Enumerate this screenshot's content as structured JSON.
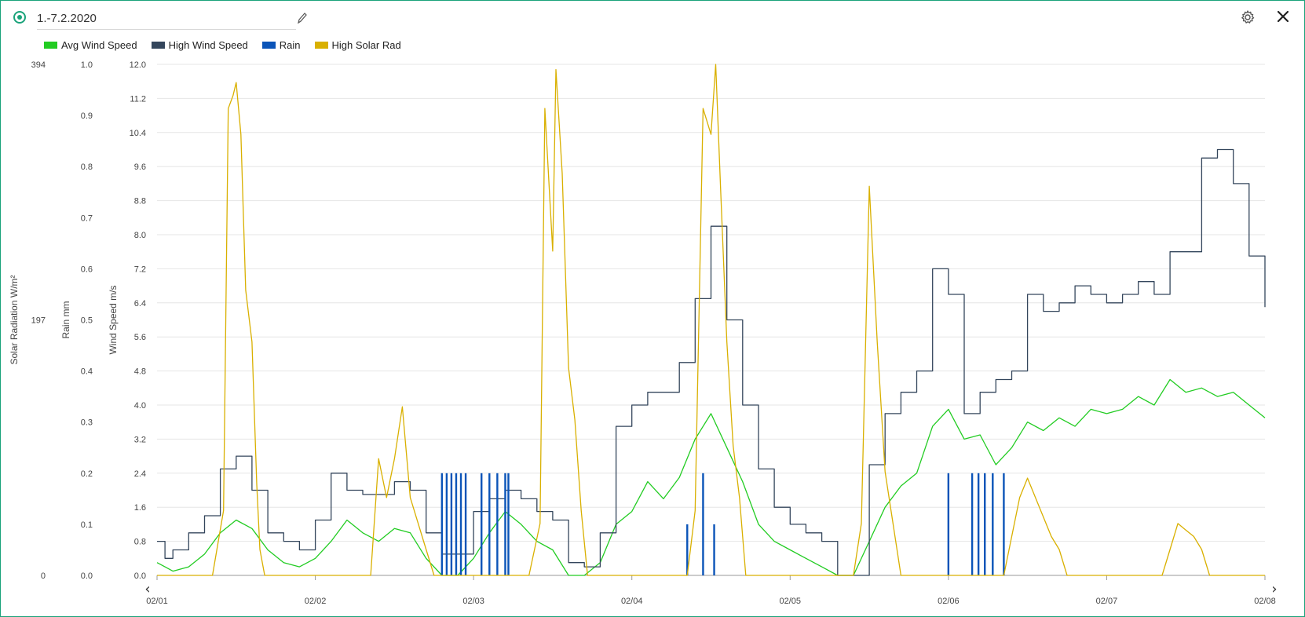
{
  "header": {
    "title_value": "1.-7.2.2020",
    "edit_icon": "pencil-icon",
    "settings_icon": "gear-icon",
    "close_icon": "close-icon",
    "status_icon": "radio-dot-icon"
  },
  "colors": {
    "accent": "#1aa37a",
    "avg_wind": "#22cc22",
    "high_wind": "#34465c",
    "rain": "#0b54b8",
    "solar": "#d9b000",
    "grid": "#e6e6e6"
  },
  "navigation": {
    "prev_icon": "chevron-left-icon",
    "next_icon": "chevron-right-icon"
  },
  "chart_data": {
    "type": "line",
    "x_tick_labels": [
      "02/01",
      "02/02",
      "02/03",
      "02/04",
      "02/05",
      "02/06",
      "02/07",
      "02/08"
    ],
    "x_range_days": [
      0,
      7
    ],
    "axes": {
      "solar": {
        "label": "Solar Radiation W/m²",
        "ticks": [
          "394",
          "197",
          "0"
        ],
        "range": [
          0,
          394
        ]
      },
      "rain": {
        "label": "Rain mm",
        "ticks": [
          "1.0",
          "0.9",
          "0.8",
          "0.7",
          "0.6",
          "0.5",
          "0.4",
          "0.3",
          "0.2",
          "0.1",
          "0.0"
        ],
        "range": [
          0,
          1.0
        ]
      },
      "wind": {
        "label": "Wind Speed m/s",
        "ticks": [
          "12.0",
          "11.2",
          "10.4",
          "9.6",
          "8.8",
          "8.0",
          "7.2",
          "6.4",
          "5.6",
          "4.8",
          "4.0",
          "3.2",
          "2.4",
          "1.6",
          "0.8",
          "0.0"
        ],
        "range": [
          0,
          12.0
        ]
      }
    },
    "grid": true,
    "legend_position": "top-left",
    "series": [
      {
        "name": "Avg Wind Speed",
        "axis": "wind",
        "style": "line",
        "x": [
          0,
          0.05,
          0.1,
          0.2,
          0.3,
          0.4,
          0.5,
          0.6,
          0.7,
          0.8,
          0.9,
          1.0,
          1.1,
          1.2,
          1.3,
          1.4,
          1.5,
          1.6,
          1.7,
          1.8,
          1.9,
          2.0,
          2.1,
          2.2,
          2.3,
          2.4,
          2.5,
          2.6,
          2.7,
          2.8,
          2.9,
          3.0,
          3.1,
          3.2,
          3.3,
          3.4,
          3.5,
          3.6,
          3.7,
          3.8,
          3.9,
          4.0,
          4.1,
          4.2,
          4.3,
          4.4,
          4.5,
          4.6,
          4.7,
          4.8,
          4.9,
          5.0,
          5.1,
          5.2,
          5.3,
          5.4,
          5.5,
          5.6,
          5.7,
          5.8,
          5.9,
          6.0,
          6.1,
          6.2,
          6.3,
          6.4,
          6.5,
          6.6,
          6.7,
          6.8,
          6.9,
          7.0
        ],
        "y": [
          0.3,
          0.2,
          0.1,
          0.2,
          0.5,
          1.0,
          1.3,
          1.1,
          0.6,
          0.3,
          0.2,
          0.4,
          0.8,
          1.3,
          1.0,
          0.8,
          1.1,
          1.0,
          0.4,
          0.0,
          0.0,
          0.4,
          1.0,
          1.5,
          1.2,
          0.8,
          0.6,
          0.0,
          0.0,
          0.3,
          1.2,
          1.5,
          2.2,
          1.8,
          2.3,
          3.2,
          3.8,
          3.0,
          2.2,
          1.2,
          0.8,
          0.6,
          0.4,
          0.2,
          0.0,
          0.0,
          0.8,
          1.6,
          2.1,
          2.4,
          3.5,
          3.9,
          3.2,
          3.3,
          2.6,
          3.0,
          3.6,
          3.4,
          3.7,
          3.5,
          3.9,
          3.8,
          3.9,
          4.2,
          4.0,
          4.6,
          4.3,
          4.4,
          4.2,
          4.3,
          4.0,
          3.7
        ]
      },
      {
        "name": "High Wind Speed",
        "axis": "wind",
        "style": "step",
        "x": [
          0,
          0.05,
          0.1,
          0.2,
          0.3,
          0.4,
          0.5,
          0.6,
          0.7,
          0.8,
          0.9,
          1.0,
          1.1,
          1.2,
          1.3,
          1.4,
          1.5,
          1.6,
          1.7,
          1.8,
          1.9,
          2.0,
          2.1,
          2.2,
          2.3,
          2.4,
          2.5,
          2.6,
          2.7,
          2.8,
          2.9,
          3.0,
          3.1,
          3.2,
          3.3,
          3.4,
          3.5,
          3.6,
          3.7,
          3.8,
          3.9,
          4.0,
          4.1,
          4.2,
          4.3,
          4.4,
          4.5,
          4.6,
          4.7,
          4.8,
          4.9,
          5.0,
          5.1,
          5.2,
          5.3,
          5.4,
          5.5,
          5.6,
          5.7,
          5.8,
          5.9,
          6.0,
          6.1,
          6.2,
          6.3,
          6.4,
          6.5,
          6.6,
          6.7,
          6.8,
          6.9,
          7.0
        ],
        "y": [
          0.8,
          0.4,
          0.6,
          1.0,
          1.4,
          2.5,
          2.8,
          2.0,
          1.0,
          0.8,
          0.6,
          1.3,
          2.4,
          2.0,
          1.9,
          1.9,
          2.2,
          2.0,
          1.0,
          0.5,
          0.5,
          1.5,
          1.8,
          2.0,
          1.8,
          1.5,
          1.3,
          0.3,
          0.2,
          1.0,
          3.5,
          4.0,
          4.3,
          4.3,
          5.0,
          6.5,
          8.2,
          6.0,
          4.0,
          2.5,
          1.6,
          1.2,
          1.0,
          0.8,
          0.0,
          0.0,
          2.6,
          3.8,
          4.3,
          4.8,
          7.2,
          6.6,
          3.8,
          4.3,
          4.6,
          4.8,
          6.6,
          6.2,
          6.4,
          6.8,
          6.6,
          6.4,
          6.6,
          6.9,
          6.6,
          7.6,
          7.6,
          9.8,
          10.0,
          9.2,
          7.5,
          6.3
        ]
      },
      {
        "name": "Rain",
        "axis": "rain",
        "style": "bars",
        "bars": [
          {
            "x": 1.8,
            "v": 0.2
          },
          {
            "x": 1.83,
            "v": 0.2
          },
          {
            "x": 1.86,
            "v": 0.2
          },
          {
            "x": 1.89,
            "v": 0.2
          },
          {
            "x": 1.92,
            "v": 0.2
          },
          {
            "x": 1.95,
            "v": 0.2
          },
          {
            "x": 2.05,
            "v": 0.2
          },
          {
            "x": 2.1,
            "v": 0.2
          },
          {
            "x": 2.15,
            "v": 0.2
          },
          {
            "x": 2.2,
            "v": 0.2
          },
          {
            "x": 2.22,
            "v": 0.2
          },
          {
            "x": 3.35,
            "v": 0.1
          },
          {
            "x": 3.45,
            "v": 0.2
          },
          {
            "x": 3.52,
            "v": 0.1
          },
          {
            "x": 5.0,
            "v": 0.2
          },
          {
            "x": 5.15,
            "v": 0.2
          },
          {
            "x": 5.19,
            "v": 0.2
          },
          {
            "x": 5.23,
            "v": 0.2
          },
          {
            "x": 5.28,
            "v": 0.2
          },
          {
            "x": 5.35,
            "v": 0.2
          }
        ]
      },
      {
        "name": "High Solar Rad",
        "axis": "solar",
        "style": "line",
        "x": [
          0,
          0.35,
          0.42,
          0.45,
          0.48,
          0.5,
          0.53,
          0.56,
          0.6,
          0.63,
          0.65,
          0.68,
          0.72,
          1.0,
          1.35,
          1.4,
          1.45,
          1.5,
          1.55,
          1.6,
          1.65,
          1.7,
          1.75,
          2.35,
          2.42,
          2.45,
          2.5,
          2.52,
          2.56,
          2.6,
          2.64,
          2.68,
          2.72,
          3.35,
          3.4,
          3.45,
          3.5,
          3.53,
          3.56,
          3.6,
          3.64,
          3.68,
          3.72,
          4.4,
          4.45,
          4.5,
          4.55,
          4.6,
          4.65,
          4.7,
          4.75,
          5.35,
          5.4,
          5.45,
          5.5,
          5.55,
          5.6,
          5.65,
          5.7,
          5.75,
          6.35,
          6.4,
          6.45,
          6.5,
          6.55,
          6.6,
          6.65,
          7.0
        ],
        "y": [
          0,
          0,
          50,
          360,
          370,
          380,
          340,
          220,
          180,
          70,
          20,
          0,
          0,
          0,
          0,
          90,
          60,
          90,
          130,
          60,
          40,
          20,
          0,
          0,
          40,
          360,
          250,
          390,
          310,
          160,
          120,
          50,
          0,
          0,
          50,
          360,
          340,
          394,
          300,
          180,
          100,
          60,
          0,
          0,
          40,
          300,
          180,
          80,
          40,
          0,
          0,
          0,
          30,
          60,
          75,
          60,
          45,
          30,
          20,
          0,
          0,
          20,
          40,
          35,
          30,
          20,
          0,
          0
        ]
      }
    ]
  }
}
